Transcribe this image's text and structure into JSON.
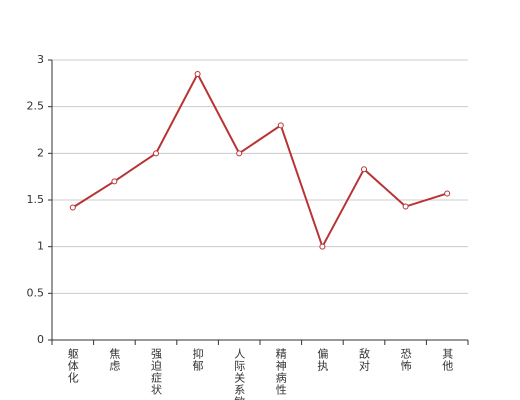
{
  "chart_data": {
    "type": "line",
    "categories": [
      "躯体化",
      "焦虑",
      "强迫症状",
      "抑郁",
      "人际关系敏感",
      "精神病性",
      "偏执",
      "敌对",
      "恐怖",
      "其他"
    ],
    "values": [
      1.42,
      1.7,
      2.0,
      2.85,
      2.0,
      2.3,
      1.0,
      1.83,
      1.43,
      1.57
    ],
    "color": "#b83434",
    "ylim": [
      0,
      3
    ],
    "yticks": [
      0,
      0.5,
      1,
      1.5,
      2,
      2.5,
      3
    ],
    "grid": true
  }
}
